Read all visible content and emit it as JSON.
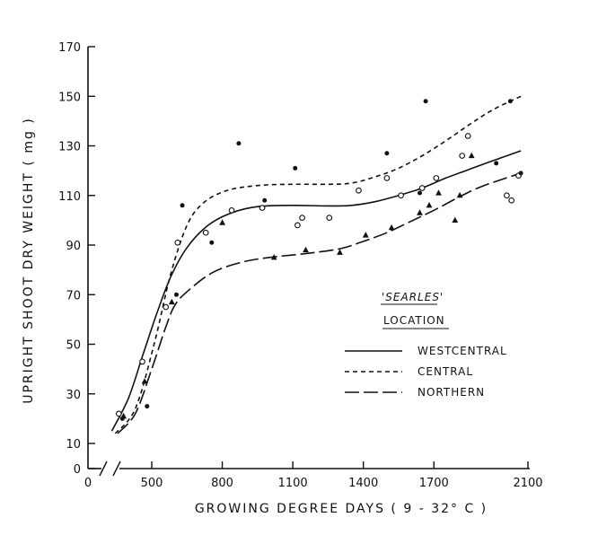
{
  "chart_data": {
    "type": "scatter",
    "title": "",
    "xlabel": "GROWING  DEGREE  DAYS  ( 9 - 32° C )",
    "ylabel": "UPRIGHT  SHOOT  DRY  WEIGHT  ( mg )",
    "xlim": [
      0,
      2100
    ],
    "ylim": [
      0,
      170
    ],
    "x_axis_break": true,
    "xticks": [
      0,
      500,
      800,
      1100,
      1400,
      1700,
      2100
    ],
    "xtick_labels": [
      "0",
      "500",
      "800",
      "1100",
      "1400",
      "1700",
      "2100"
    ],
    "yticks": [
      0,
      10,
      30,
      50,
      70,
      90,
      110,
      130,
      150,
      170
    ],
    "ytick_labels": [
      "0",
      "10",
      "30",
      "50",
      "70",
      "90",
      "110",
      "130",
      "150",
      "170"
    ],
    "legend": {
      "title": "'SEARLES'",
      "subtitle": "LOCATION",
      "entries": [
        "WESTCENTRAL",
        "CENTRAL",
        "NORTHERN"
      ]
    },
    "series": [
      {
        "name": "WESTCENTRAL",
        "marker": "open-circle",
        "line": "solid",
        "points": [
          [
            360,
            22
          ],
          [
            460,
            43
          ],
          [
            560,
            65
          ],
          [
            610,
            91
          ],
          [
            730,
            95
          ],
          [
            840,
            104
          ],
          [
            970,
            105
          ],
          [
            1120,
            98
          ],
          [
            1140,
            101
          ],
          [
            1255,
            101
          ],
          [
            1380,
            112
          ],
          [
            1500,
            117
          ],
          [
            1560,
            110
          ],
          [
            1650,
            113
          ],
          [
            1710,
            117
          ],
          [
            1820,
            126
          ],
          [
            1845,
            134
          ],
          [
            2010,
            110
          ],
          [
            2030,
            108
          ],
          [
            2060,
            118
          ]
        ],
        "curve": [
          [
            330,
            15
          ],
          [
            400,
            28
          ],
          [
            460,
            45
          ],
          [
            520,
            62
          ],
          [
            580,
            77
          ],
          [
            650,
            89
          ],
          [
            740,
            98
          ],
          [
            840,
            103
          ],
          [
            950,
            105.5
          ],
          [
            1100,
            106
          ],
          [
            1250,
            105.8
          ],
          [
            1350,
            106
          ],
          [
            1450,
            107.5
          ],
          [
            1550,
            110
          ],
          [
            1650,
            113
          ],
          [
            1750,
            117
          ],
          [
            1850,
            120.5
          ],
          [
            1950,
            124
          ],
          [
            2070,
            128
          ]
        ]
      },
      {
        "name": "CENTRAL",
        "marker": "filled-circle",
        "line": "short-dash",
        "points": [
          [
            375,
            20
          ],
          [
            480,
            25
          ],
          [
            605,
            70
          ],
          [
            630,
            106
          ],
          [
            755,
            91
          ],
          [
            870,
            131
          ],
          [
            980,
            108
          ],
          [
            1110,
            121
          ],
          [
            1500,
            127
          ],
          [
            1640,
            111
          ],
          [
            1665,
            148
          ],
          [
            1965,
            123
          ],
          [
            2025,
            148
          ],
          [
            2070,
            119
          ]
        ],
        "curve": [
          [
            345,
            14
          ],
          [
            430,
            24
          ],
          [
            510,
            50
          ],
          [
            580,
            78
          ],
          [
            650,
            98
          ],
          [
            720,
            107
          ],
          [
            820,
            112
          ],
          [
            950,
            114
          ],
          [
            1100,
            114.5
          ],
          [
            1250,
            114.5
          ],
          [
            1350,
            115
          ],
          [
            1450,
            117.5
          ],
          [
            1550,
            121
          ],
          [
            1650,
            126
          ],
          [
            1750,
            132
          ],
          [
            1850,
            138.5
          ],
          [
            1950,
            144.5
          ],
          [
            2070,
            150
          ]
        ]
      },
      {
        "name": "NORTHERN",
        "marker": "filled-triangle",
        "line": "long-dash",
        "points": [
          [
            380,
            21
          ],
          [
            470,
            35
          ],
          [
            585,
            67
          ],
          [
            800,
            99
          ],
          [
            1020,
            85
          ],
          [
            1155,
            88
          ],
          [
            1300,
            87
          ],
          [
            1410,
            94
          ],
          [
            1520,
            97
          ],
          [
            1640,
            103
          ],
          [
            1680,
            106
          ],
          [
            1720,
            111
          ],
          [
            1790,
            100
          ],
          [
            1810,
            110
          ],
          [
            1860,
            126
          ]
        ],
        "curve": [
          [
            355,
            14
          ],
          [
            430,
            22
          ],
          [
            500,
            40
          ],
          [
            560,
            57
          ],
          [
            600,
            66
          ],
          [
            660,
            72
          ],
          [
            760,
            79
          ],
          [
            880,
            83
          ],
          [
            1000,
            85
          ],
          [
            1150,
            86.5
          ],
          [
            1300,
            88.5
          ],
          [
            1400,
            91.5
          ],
          [
            1500,
            95
          ],
          [
            1600,
            99.5
          ],
          [
            1700,
            104
          ],
          [
            1800,
            109
          ],
          [
            1900,
            113.5
          ],
          [
            2070,
            119
          ]
        ]
      }
    ]
  }
}
